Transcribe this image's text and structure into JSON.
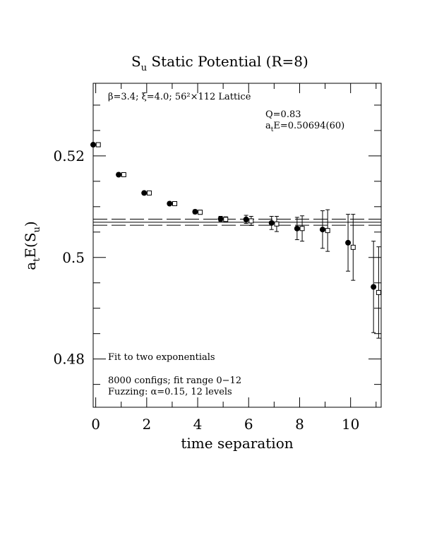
{
  "chart_data": {
    "type": "scatter",
    "title_main": "S",
    "title_sub": "u",
    "title_rest": " Static Potential (R=8)",
    "xlabel": "time separation",
    "ylabel_main": "a",
    "ylabel_sub1": "t",
    "ylabel_mid": "E(S",
    "ylabel_sub2": "u",
    "ylabel_end": ")",
    "xlim": [
      -0.1,
      11.2
    ],
    "ylim": [
      0.4705,
      0.5343
    ],
    "xticks": [
      0,
      2,
      4,
      6,
      8,
      10
    ],
    "xtick_labels": [
      "0",
      "2",
      "4",
      "6",
      "8",
      "10"
    ],
    "yticks": [
      0.48,
      0.5,
      0.52
    ],
    "ytick_labels": [
      "0.48",
      "0.5",
      "0.52"
    ],
    "annotations": {
      "lattice": "β=3.4; ξ=4.0; 56²×112 Lattice",
      "q": "Q=0.83",
      "energy_main": "a",
      "energy_sub": "t",
      "energy_rest": "E=0.50694(60)",
      "fit": "Fit to two exponentials",
      "configs": "8000 configs; fit range 0−12",
      "fuzzing": "Fuzzing: α=0.15, 12 levels"
    },
    "fit": {
      "value": 0.50694,
      "error": 0.0006
    },
    "series": [
      {
        "marker": "filled-circle",
        "points": [
          {
            "x": 0,
            "y": 0.5222,
            "err": 0.0002
          },
          {
            "x": 1,
            "y": 0.5163,
            "err": 0.0003
          },
          {
            "x": 2,
            "y": 0.5127,
            "err": 0.0003
          },
          {
            "x": 3,
            "y": 0.5106,
            "err": 0.0003
          },
          {
            "x": 4,
            "y": 0.509,
            "err": 0.0004
          },
          {
            "x": 5,
            "y": 0.5076,
            "err": 0.0005
          },
          {
            "x": 6,
            "y": 0.5075,
            "err": 0.0008
          },
          {
            "x": 7,
            "y": 0.5068,
            "err": 0.0013
          },
          {
            "x": 8,
            "y": 0.5057,
            "err": 0.0022
          },
          {
            "x": 9,
            "y": 0.5055,
            "err": 0.0037
          },
          {
            "x": 10,
            "y": 0.5029,
            "err": 0.0056
          },
          {
            "x": 11,
            "y": 0.4942,
            "err": 0.009
          }
        ]
      },
      {
        "marker": "open-square",
        "points": [
          {
            "x": 0,
            "y": 0.5222,
            "err": 0.0002
          },
          {
            "x": 1,
            "y": 0.5163,
            "err": 0.0003
          },
          {
            "x": 2,
            "y": 0.5127,
            "err": 0.0003
          },
          {
            "x": 3,
            "y": 0.5106,
            "err": 0.0003
          },
          {
            "x": 4,
            "y": 0.5089,
            "err": 0.0004
          },
          {
            "x": 5,
            "y": 0.5075,
            "err": 0.0005
          },
          {
            "x": 6,
            "y": 0.5072,
            "err": 0.0009
          },
          {
            "x": 7,
            "y": 0.5066,
            "err": 0.0015
          },
          {
            "x": 8,
            "y": 0.5057,
            "err": 0.0025
          },
          {
            "x": 9,
            "y": 0.5053,
            "err": 0.0041
          },
          {
            "x": 10,
            "y": 0.502,
            "err": 0.0065
          },
          {
            "x": 11,
            "y": 0.4931,
            "err": 0.009
          }
        ]
      }
    ]
  }
}
